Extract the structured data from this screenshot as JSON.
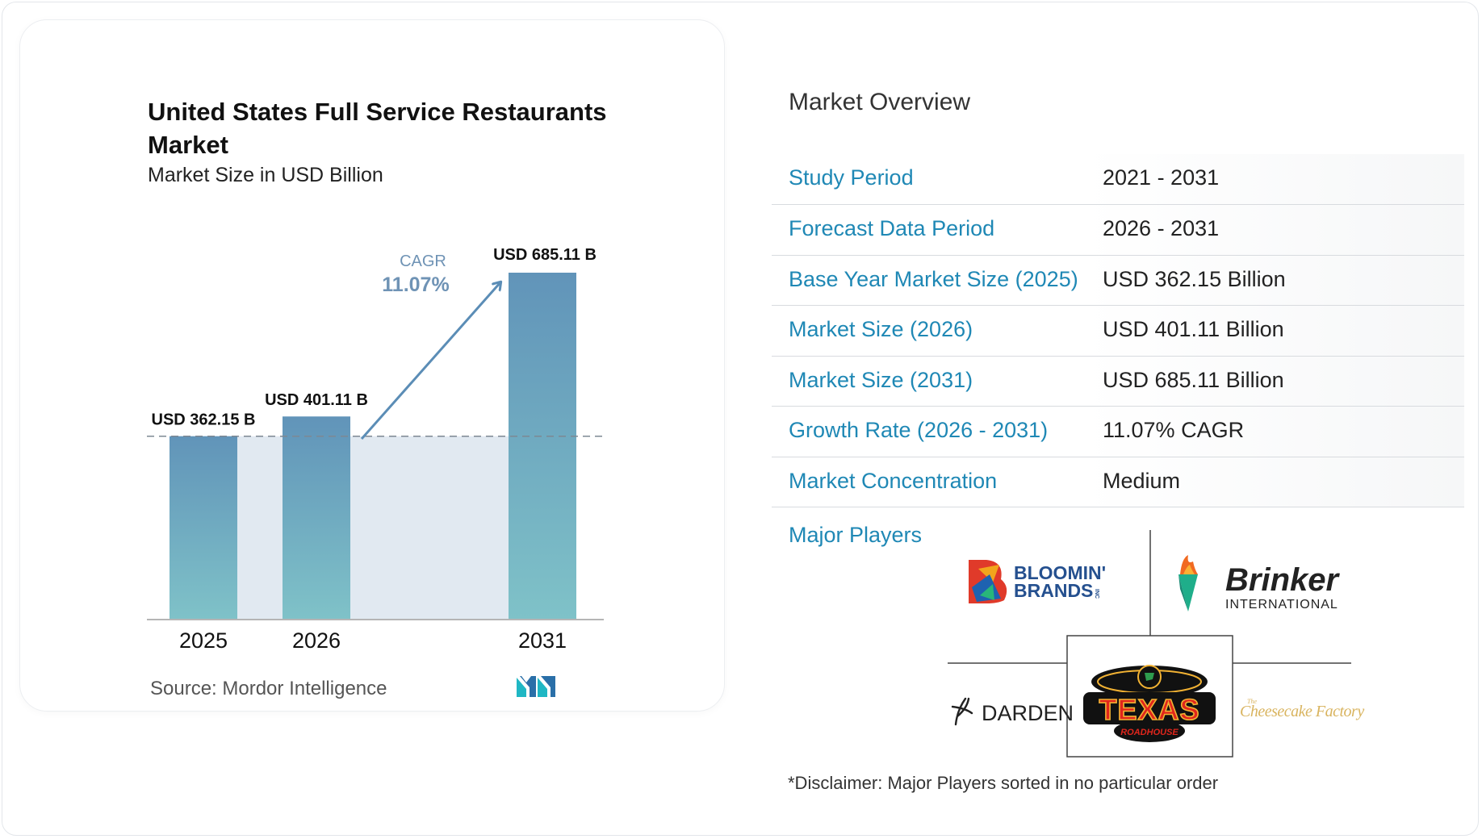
{
  "chart_data": {
    "type": "bar",
    "title": "United States Full Service Restaurants Market",
    "subtitle": "Market Size in USD Billion",
    "categories": [
      "2025",
      "2026",
      "2031"
    ],
    "values": [
      362.15,
      401.11,
      685.11
    ],
    "data_labels": [
      "USD 362.15 B",
      "USD 401.11 B",
      "USD 685.11 B"
    ],
    "cagr_label": "CAGR",
    "cagr_value": "11.07%",
    "ylim": [
      0,
      685.11
    ],
    "grid": false,
    "legend": "none",
    "colors": {
      "bar_top": "#6194b9",
      "bar_bottom": "#7fc2c8",
      "band": "#e1e9f1",
      "arrow": "#5b8db6",
      "axis": "#b5b5b5",
      "dash": "#7d8893"
    }
  },
  "source": "Source:  Mordor Intelligence",
  "overview": {
    "title": "Market Overview",
    "rows": [
      {
        "label": "Study Period",
        "value": "2021 - 2031"
      },
      {
        "label": "Forecast Data Period",
        "value": "2026 - 2031"
      },
      {
        "label": "Base Year Market Size (2025)",
        "value": "USD 362.15 Billion"
      },
      {
        "label": "Market Size (2026)",
        "value": "USD 401.11 Billion"
      },
      {
        "label": "Market Size (2031)",
        "value": "USD 685.11 Billion"
      },
      {
        "label": "Growth Rate (2026 - 2031)",
        "value": "11.07% CAGR"
      },
      {
        "label": "Market Concentration",
        "value": "Medium"
      }
    ],
    "accent": "#1f88b5"
  },
  "players": {
    "label": "Major Players",
    "logos": {
      "bloomin": {
        "line1": "BLOOMIN'",
        "line2": "BRANDS",
        "suffix": "INC"
      },
      "brinker": {
        "line1": "Brinker",
        "line2": "INTERNATIONAL"
      },
      "darden": {
        "text": "DARDEN"
      },
      "texas": {
        "line1": "TEXAS",
        "line2": "ROADHOUSE"
      },
      "cheesecake": {
        "prefix": "The",
        "text": "Cheesecake Factory"
      }
    },
    "disclaimer": "*Disclaimer: Major Players sorted in no particular order"
  }
}
